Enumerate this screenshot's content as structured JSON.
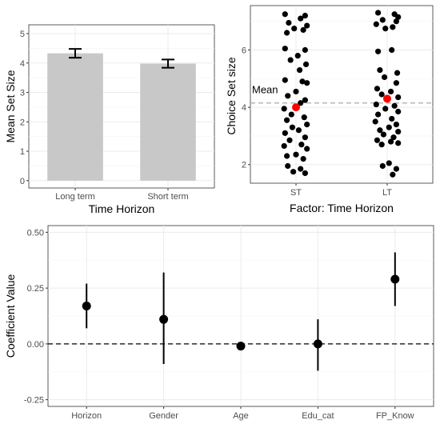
{
  "chart_data": [
    {
      "type": "bar",
      "xlabel": "Time Horizon",
      "ylabel": "Mean Set Size",
      "categories": [
        "Long term",
        "Short term"
      ],
      "values": [
        4.33,
        3.98
      ],
      "error": [
        [
          4.18,
          4.48
        ],
        [
          3.84,
          4.12
        ]
      ],
      "ylim": [
        -0.25,
        5.3
      ],
      "yticks": [
        0,
        1,
        2,
        3,
        4,
        5
      ],
      "bar_color": "#c8c8c8",
      "grid": true
    },
    {
      "type": "scatter",
      "xlabel": "Factor: Time Horizon",
      "ylabel": "Choice Set size",
      "categories": [
        "ST",
        "LT"
      ],
      "yticks": [
        2,
        4,
        6
      ],
      "ylim": [
        1.35,
        7.55
      ],
      "mean_line": {
        "value": 4.15,
        "label": "Mean",
        "color": "#aaaaaa"
      },
      "mean_markers": [
        4.0,
        4.3
      ],
      "mean_marker_color": "#ff0000",
      "point_color": "#000000",
      "grid": true,
      "series": [
        {
          "category": "ST",
          "points": [
            {
              "y": 7.25,
              "j": -0.12
            },
            {
              "y": 7.2,
              "j": 0.1
            },
            {
              "y": 7.1,
              "j": 0.05
            },
            {
              "y": 6.95,
              "j": -0.08
            },
            {
              "y": 6.85,
              "j": 0.12
            },
            {
              "y": 6.75,
              "j": -0.02
            },
            {
              "y": 6.7,
              "j": 0.08
            },
            {
              "y": 6.6,
              "j": -0.1
            },
            {
              "y": 6.05,
              "j": -0.12
            },
            {
              "y": 6.0,
              "j": 0.1
            },
            {
              "y": 5.8,
              "j": 0.02
            },
            {
              "y": 5.65,
              "j": -0.06
            },
            {
              "y": 5.5,
              "j": 0.11
            },
            {
              "y": 5.3,
              "j": 0.04
            },
            {
              "y": 4.95,
              "j": -0.12
            },
            {
              "y": 4.9,
              "j": 0.07
            },
            {
              "y": 4.85,
              "j": 0.12
            },
            {
              "y": 4.55,
              "j": 0.0
            },
            {
              "y": 4.4,
              "j": -0.09
            },
            {
              "y": 4.25,
              "j": 0.1
            },
            {
              "y": 4.15,
              "j": 0.05
            },
            {
              "y": 3.95,
              "j": -0.13
            },
            {
              "y": 3.75,
              "j": -0.05
            },
            {
              "y": 3.65,
              "j": 0.09
            },
            {
              "y": 3.55,
              "j": -0.1
            },
            {
              "y": 3.4,
              "j": 0.12
            },
            {
              "y": 3.3,
              "j": -0.04
            },
            {
              "y": 3.2,
              "j": 0.03
            },
            {
              "y": 3.1,
              "j": -0.12
            },
            {
              "y": 2.95,
              "j": 0.1
            },
            {
              "y": 2.85,
              "j": -0.07
            },
            {
              "y": 2.7,
              "j": 0.06
            },
            {
              "y": 2.65,
              "j": -0.13
            },
            {
              "y": 2.55,
              "j": 0.12
            },
            {
              "y": 2.35,
              "j": 0.0
            },
            {
              "y": 2.3,
              "j": -0.1
            },
            {
              "y": 2.2,
              "j": 0.08
            },
            {
              "y": 1.95,
              "j": -0.09
            },
            {
              "y": 1.85,
              "j": 0.05
            },
            {
              "y": 1.75,
              "j": -0.03
            },
            {
              "y": 1.7,
              "j": 0.1
            }
          ]
        },
        {
          "category": "LT",
          "points": [
            {
              "y": 7.3,
              "j": -0.1
            },
            {
              "y": 7.25,
              "j": 0.08
            },
            {
              "y": 7.15,
              "j": 0.12
            },
            {
              "y": 7.05,
              "j": -0.05
            },
            {
              "y": 7.0,
              "j": 0.1
            },
            {
              "y": 6.9,
              "j": -0.12
            },
            {
              "y": 6.8,
              "j": 0.06
            },
            {
              "y": 6.75,
              "j": -0.02
            },
            {
              "y": 6.0,
              "j": 0.05
            },
            {
              "y": 5.95,
              "j": -0.1
            },
            {
              "y": 5.3,
              "j": -0.08
            },
            {
              "y": 5.2,
              "j": 0.11
            },
            {
              "y": 5.05,
              "j": -0.03
            },
            {
              "y": 4.85,
              "j": 0.1
            },
            {
              "y": 4.65,
              "j": -0.11
            },
            {
              "y": 4.55,
              "j": 0.04
            },
            {
              "y": 4.45,
              "j": -0.06
            },
            {
              "y": 4.35,
              "j": 0.12
            },
            {
              "y": 4.1,
              "j": -0.12
            },
            {
              "y": 4.05,
              "j": 0.08
            },
            {
              "y": 3.95,
              "j": -0.02
            },
            {
              "y": 3.85,
              "j": 0.12
            },
            {
              "y": 3.75,
              "j": -0.1
            },
            {
              "y": 3.6,
              "j": 0.05
            },
            {
              "y": 3.5,
              "j": -0.13
            },
            {
              "y": 3.4,
              "j": 0.1
            },
            {
              "y": 3.3,
              "j": 0.02
            },
            {
              "y": 3.2,
              "j": -0.08
            },
            {
              "y": 3.15,
              "j": 0.12
            },
            {
              "y": 3.05,
              "j": -0.04
            },
            {
              "y": 2.95,
              "j": 0.07
            },
            {
              "y": 2.85,
              "j": -0.11
            },
            {
              "y": 2.8,
              "j": 0.04
            },
            {
              "y": 2.75,
              "j": 0.12
            },
            {
              "y": 2.7,
              "j": -0.06
            },
            {
              "y": 2.05,
              "j": 0.02
            },
            {
              "y": 1.95,
              "j": -0.05
            },
            {
              "y": 1.85,
              "j": 0.1
            },
            {
              "y": 1.65,
              "j": 0.06
            }
          ]
        }
      ]
    },
    {
      "type": "scatter",
      "xlabel": "",
      "ylabel": "Coefficient Value",
      "categories": [
        "Horizon",
        "Gender",
        "Age",
        "Edu_cat",
        "FP_Know"
      ],
      "estimates": [
        0.17,
        0.11,
        -0.01,
        0.0,
        0.29
      ],
      "intervals": [
        [
          0.07,
          0.27
        ],
        [
          -0.09,
          0.32
        ],
        [
          -0.01,
          -0.01
        ],
        [
          -0.12,
          0.11
        ],
        [
          0.17,
          0.41
        ]
      ],
      "yticks": [
        -0.25,
        0.0,
        0.25,
        0.5
      ],
      "ytick_labels": [
        "-0.25",
        "0.00",
        "0.25",
        "0.50"
      ],
      "ylim": [
        -0.28,
        0.53
      ],
      "reference_line": 0,
      "grid": true
    }
  ]
}
